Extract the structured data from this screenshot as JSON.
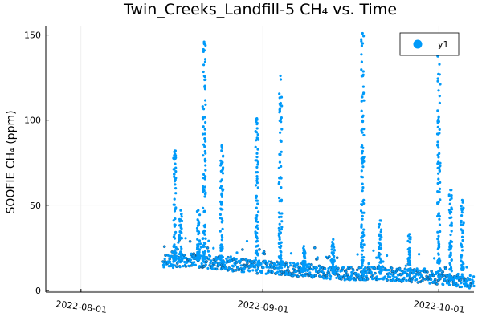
{
  "chart_data": {
    "type": "scatter",
    "title": "Twin_Creeks_Landfill-5 CH₄ vs. Time",
    "xlabel": "",
    "ylabel": "SOOFIE CH₄ (ppm)",
    "x_range": [
      "2022-07-26",
      "2022-10-07"
    ],
    "ylim": [
      -1,
      155
    ],
    "x_ticks": [
      "2022-08-01",
      "2022-09-01",
      "2022-10-01"
    ],
    "y_ticks": [
      0,
      50,
      100,
      150
    ],
    "grid": true,
    "legend_position": "top-right",
    "series": [
      {
        "name": "y1",
        "color": "#009af9",
        "baseline": [
          [
            "2022-08-15",
            17
          ],
          [
            "2022-08-20",
            18
          ],
          [
            "2022-08-25",
            16
          ],
          [
            "2022-08-30",
            14
          ],
          [
            "2022-09-05",
            13
          ],
          [
            "2022-09-10",
            11
          ],
          [
            "2022-09-15",
            10
          ],
          [
            "2022-09-20",
            10
          ],
          [
            "2022-09-25",
            9
          ],
          [
            "2022-09-30",
            8
          ],
          [
            "2022-10-04",
            6
          ],
          [
            "2022-10-07",
            5
          ]
        ],
        "spikes": [
          [
            "2022-08-17",
            82
          ],
          [
            "2022-08-18",
            47
          ],
          [
            "2022-08-21",
            47
          ],
          [
            "2022-08-22",
            146
          ],
          [
            "2022-08-25",
            85
          ],
          [
            "2022-08-31",
            101
          ],
          [
            "2022-09-04",
            126
          ],
          [
            "2022-09-08",
            26
          ],
          [
            "2022-09-13",
            30
          ],
          [
            "2022-09-18",
            151
          ],
          [
            "2022-09-21",
            41
          ],
          [
            "2022-09-26",
            33
          ],
          [
            "2022-10-01",
            145
          ],
          [
            "2022-10-03",
            59
          ],
          [
            "2022-10-05",
            53
          ]
        ]
      }
    ]
  }
}
